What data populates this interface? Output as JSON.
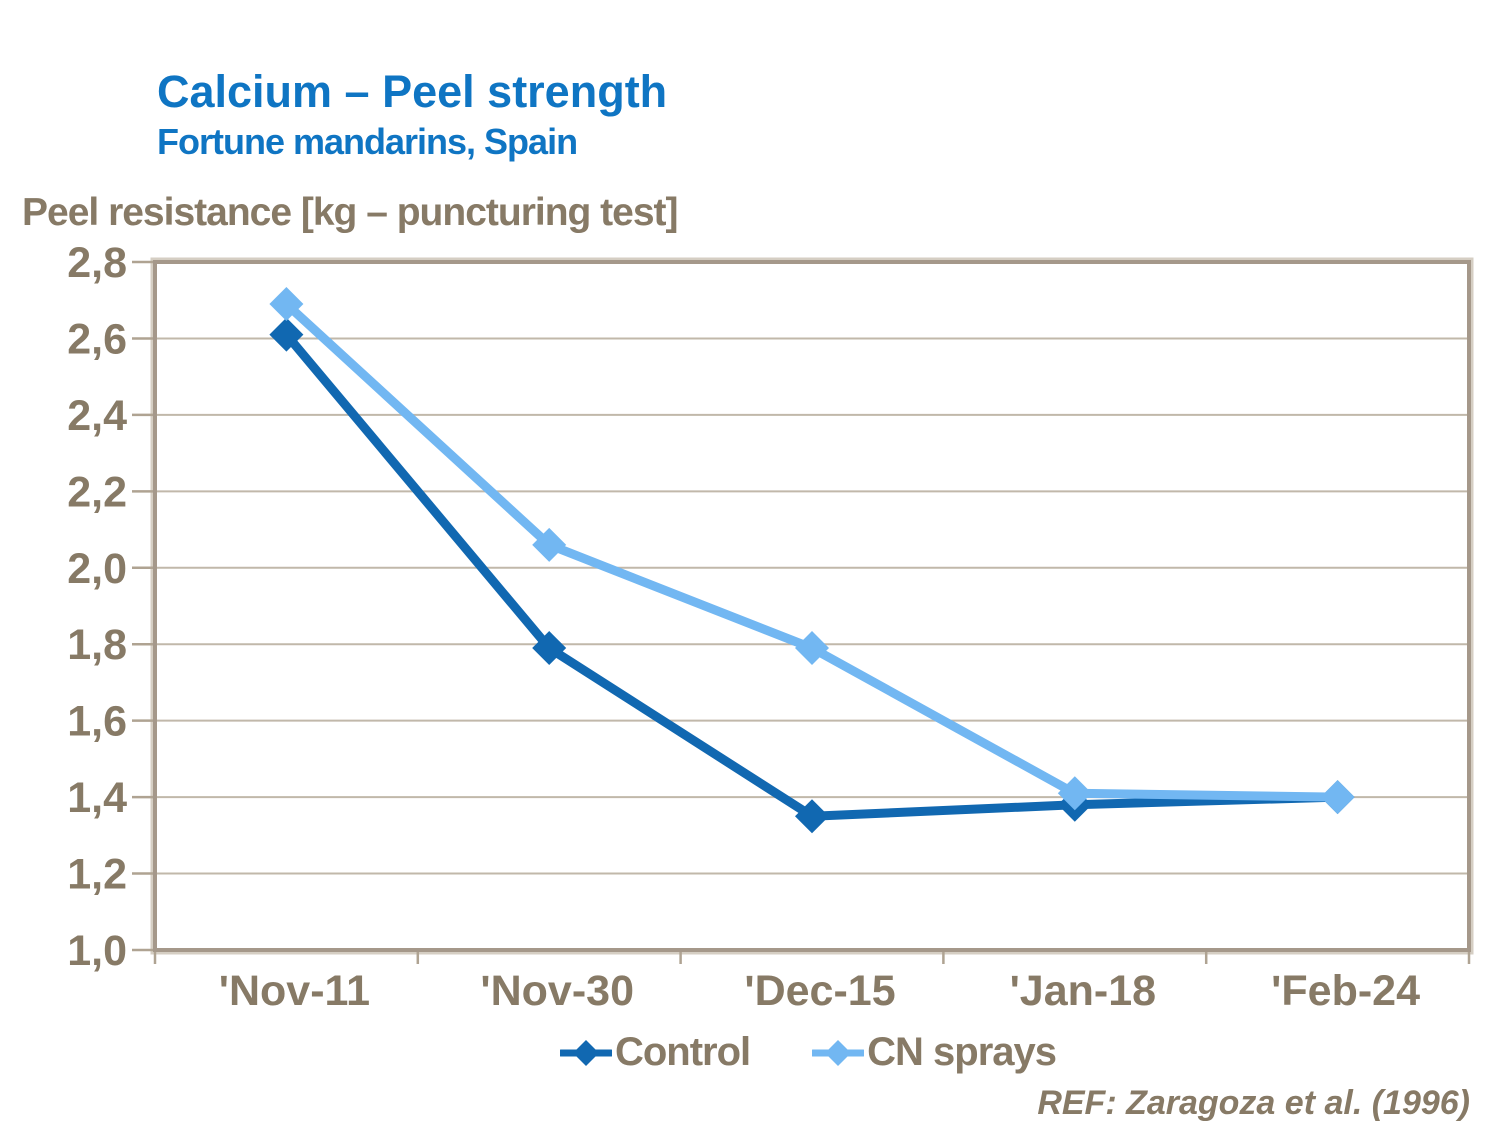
{
  "header": {
    "title": "Calcium – Peel strength",
    "subtitle": "Fortune mandarins, Spain",
    "title_color": "#0F75C3"
  },
  "axis_title": "Peel resistance [kg – puncturing test]",
  "footer": {
    "reference": "REF: Zaragoza et al. (1996)"
  },
  "colors": {
    "title_blue": "#0F75C3",
    "text_tan": "#877A66",
    "gridline": "#C1B8AA",
    "frame": "#A5988A",
    "frame_highlight": "#D5CEC3",
    "tick_stub": "#AFA392",
    "control_blue": "#1168B1",
    "cn_sprays_blue": "#72B7F2",
    "background": "#FFFFFF"
  },
  "chart_data": {
    "type": "line",
    "title": "Calcium – Peel strength",
    "subtitle": "Fortune mandarins, Spain",
    "ylabel": "Peel resistance [kg – puncturing test]",
    "xlabel": "",
    "categories": [
      "'Nov-11",
      "'Nov-30",
      "'Dec-15",
      "'Jan-18",
      "'Feb-24"
    ],
    "series": [
      {
        "name": "Control",
        "color": "#1168B1",
        "values": [
          2.61,
          1.79,
          1.35,
          1.38,
          1.4
        ]
      },
      {
        "name": "CN sprays",
        "color": "#72B7F2",
        "values": [
          2.69,
          2.06,
          1.79,
          1.41,
          1.4
        ]
      }
    ],
    "ylim": [
      1.0,
      2.8
    ],
    "ytick_step": 0.2,
    "yticks": [
      {
        "value": 1.0,
        "label": "1,0"
      },
      {
        "value": 1.2,
        "label": "1,2"
      },
      {
        "value": 1.4,
        "label": "1,4"
      },
      {
        "value": 1.6,
        "label": "1,6"
      },
      {
        "value": 1.8,
        "label": "1,8"
      },
      {
        "value": 2.0,
        "label": "2,0"
      },
      {
        "value": 2.2,
        "label": "2,2"
      },
      {
        "value": 2.4,
        "label": "2,4"
      },
      {
        "value": 2.6,
        "label": "2,6"
      },
      {
        "value": 2.8,
        "label": "2,8"
      }
    ],
    "decimal_separator": ",",
    "grid": true,
    "marker": "diamond",
    "legend_position": "bottom"
  }
}
